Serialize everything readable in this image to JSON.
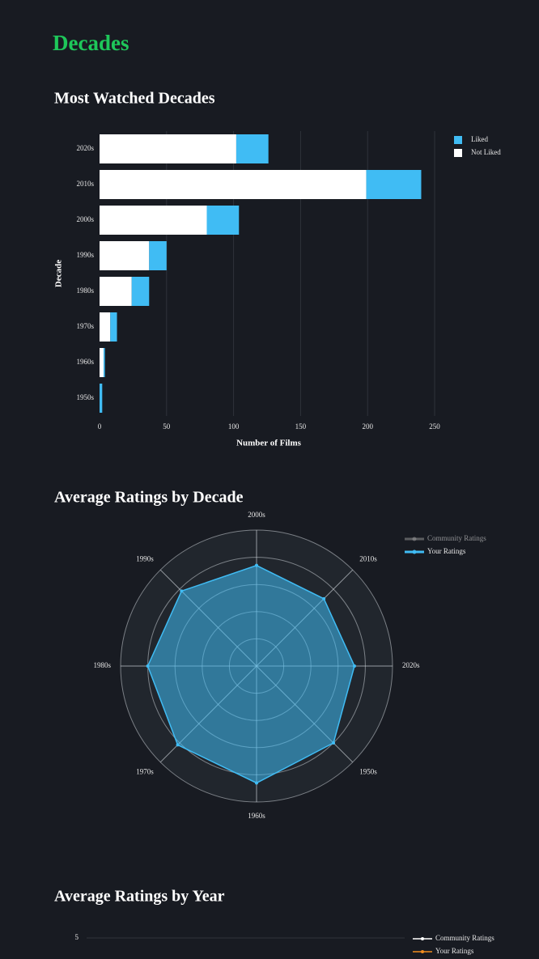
{
  "header": {
    "title": "Decades"
  },
  "chart_data": [
    {
      "type": "bar",
      "orientation": "horizontal",
      "barmode": "stack",
      "title": "Most Watched Decades",
      "xlabel": "Number of Films",
      "ylabel": "Decade",
      "categories": [
        "2020s",
        "2010s",
        "2000s",
        "1990s",
        "1980s",
        "1970s",
        "1960s",
        "1950s"
      ],
      "series": [
        {
          "name": "Not Liked",
          "color": "#ffffff",
          "values": [
            102,
            199,
            80,
            37,
            24,
            8,
            3,
            0
          ]
        },
        {
          "name": "Liked",
          "color": "#40bcf4",
          "values": [
            24,
            41,
            24,
            13,
            13,
            5,
            1,
            2
          ]
        }
      ],
      "xlim": [
        0,
        260
      ],
      "xticks": [
        0,
        50,
        100,
        150,
        200,
        250
      ],
      "grid": true,
      "legend": "top-right"
    },
    {
      "type": "radar",
      "title": "Average Ratings by Decade",
      "categories": [
        "2000s",
        "2010s",
        "2020s",
        "1950s",
        "1960s",
        "1970s",
        "1980s",
        "1990s"
      ],
      "series": [
        {
          "name": "Community Ratings",
          "color": "#9e9e9e",
          "visible": false,
          "values": [
            null,
            null,
            null,
            null,
            null,
            null,
            null,
            null
          ]
        },
        {
          "name": "Your Ratings",
          "color": "#40bcf4",
          "values": [
            3.7,
            3.5,
            3.6,
            4.0,
            4.3,
            4.1,
            4.0,
            3.9
          ]
        }
      ],
      "rlim": [
        0,
        5
      ],
      "rticks": [
        1,
        2,
        3,
        4,
        5
      ],
      "legend": "top-right"
    },
    {
      "type": "line",
      "title": "Average Ratings by Year",
      "series": [
        {
          "name": "Community Ratings",
          "color": "#ffffff"
        },
        {
          "name": "Your Ratings",
          "color": "#f08c1e"
        }
      ],
      "ylim": [
        0,
        5.2
      ],
      "yticks": [
        5
      ],
      "grid": true,
      "legend": "top-right"
    }
  ]
}
